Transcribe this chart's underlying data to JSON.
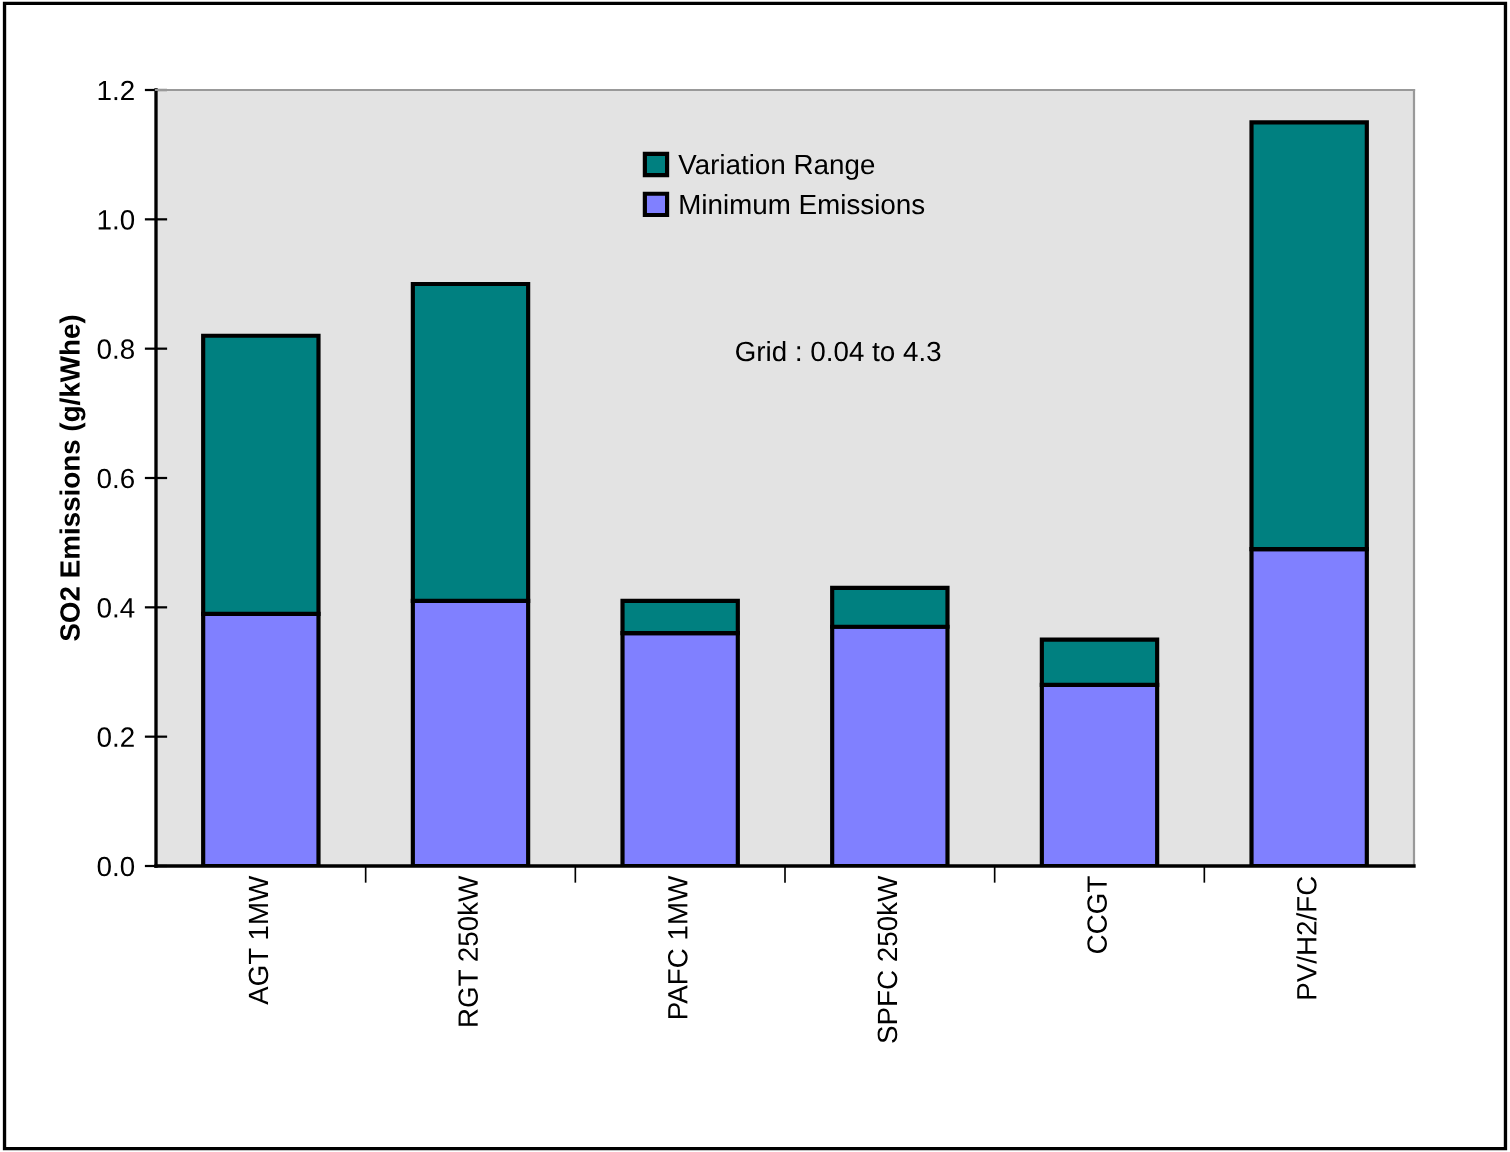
{
  "chart_data": {
    "type": "bar",
    "stacked": true,
    "ylabel": "SO2 Emissions (g/kWhe)",
    "categories": [
      "AGT 1MW",
      "RGT 250kW",
      "PAFC 1MW",
      "SPFC 250kW",
      "CCGT",
      "PV/H2/FC"
    ],
    "series": [
      {
        "name": "Minimum Emissions",
        "color": "#8080ff",
        "values": [
          0.39,
          0.41,
          0.36,
          0.37,
          0.28,
          0.49
        ]
      },
      {
        "name": "Variation Range",
        "color": "#008080",
        "values": [
          0.43,
          0.49,
          0.05,
          0.06,
          0.07,
          0.66
        ]
      }
    ],
    "ylim": [
      0,
      1.2
    ],
    "yticks": [
      {
        "value": 0,
        "label": "0.0"
      },
      {
        "value": 0.2,
        "label": "0.2"
      },
      {
        "value": 0.4,
        "label": "0.4"
      },
      {
        "value": 0.6,
        "label": "0.6"
      },
      {
        "value": 0.8,
        "label": "0.8"
      },
      {
        "value": 1.0,
        "label": "1.0"
      },
      {
        "value": 1.2,
        "label": "1.2"
      }
    ],
    "grid": false,
    "legend": "top",
    "annotations": [
      "Grid : 0.04 to 4.3"
    ]
  }
}
